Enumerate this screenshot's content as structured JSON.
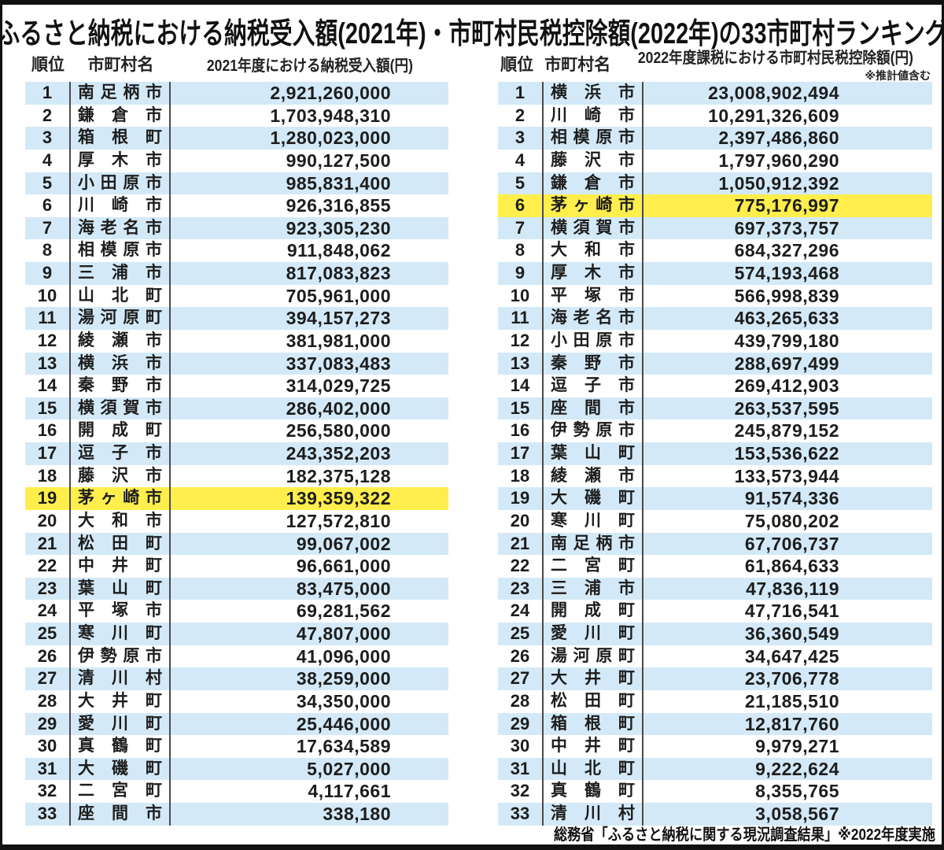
{
  "title": "ふるさと納税における納税受入額(2021年)・市町村民税控除額(2022年)の33市町村ランキング",
  "footer": "総務省「ふるさと納税に関する現況調査結果」※2022年度実施",
  "colors": {
    "stripe_blue": "#d3e9f7",
    "highlight_yellow": "#ffee4c",
    "divider_gray": "#4a4a4a",
    "frame_black": "#111111",
    "text_black": "#1d1d1d"
  },
  "chart_data": [
    {
      "type": "table",
      "title": "2021年度における納税受入額(円)",
      "headers": {
        "rank": "順位",
        "name": "市町村名",
        "amount": "2021年度における納税受入額(円)",
        "note": ""
      },
      "highlight_rank": 19,
      "highlight_name": "茅ヶ崎市",
      "columns": [
        "順位",
        "市町村名",
        "納税受入額(円)"
      ],
      "rows": [
        [
          1,
          "南足柄市",
          "2,921,260,000"
        ],
        [
          2,
          "鎌倉市",
          "1,703,948,310"
        ],
        [
          3,
          "箱根町",
          "1,280,023,000"
        ],
        [
          4,
          "厚木市",
          "990,127,500"
        ],
        [
          5,
          "小田原市",
          "985,831,400"
        ],
        [
          6,
          "川崎市",
          "926,316,855"
        ],
        [
          7,
          "海老名市",
          "923,305,230"
        ],
        [
          8,
          "相模原市",
          "911,848,062"
        ],
        [
          9,
          "三浦市",
          "817,083,823"
        ],
        [
          10,
          "山北町",
          "705,961,000"
        ],
        [
          11,
          "湯河原町",
          "394,157,273"
        ],
        [
          12,
          "綾瀬市",
          "381,981,000"
        ],
        [
          13,
          "横浜市",
          "337,083,483"
        ],
        [
          14,
          "秦野市",
          "314,029,725"
        ],
        [
          15,
          "横須賀市",
          "286,402,000"
        ],
        [
          16,
          "開成町",
          "256,580,000"
        ],
        [
          17,
          "逗子市",
          "243,352,203"
        ],
        [
          18,
          "藤沢市",
          "182,375,128"
        ],
        [
          19,
          "茅ヶ崎市",
          "139,359,322"
        ],
        [
          20,
          "大和市",
          "127,572,810"
        ],
        [
          21,
          "松田町",
          "99,067,002"
        ],
        [
          22,
          "中井町",
          "96,661,000"
        ],
        [
          23,
          "葉山町",
          "83,475,000"
        ],
        [
          24,
          "平塚市",
          "69,281,562"
        ],
        [
          25,
          "寒川町",
          "47,807,000"
        ],
        [
          26,
          "伊勢原市",
          "41,096,000"
        ],
        [
          27,
          "清川村",
          "38,259,000"
        ],
        [
          28,
          "大井町",
          "34,350,000"
        ],
        [
          29,
          "愛川町",
          "25,446,000"
        ],
        [
          30,
          "真鶴町",
          "17,634,589"
        ],
        [
          31,
          "大磯町",
          "5,027,000"
        ],
        [
          32,
          "二宮町",
          "4,117,661"
        ],
        [
          33,
          "座間市",
          "338,180"
        ]
      ]
    },
    {
      "type": "table",
      "title": "2022年度課税における市町村民税控除額(円)",
      "headers": {
        "rank": "順位",
        "name": "市町村名",
        "amount": "2022年度課税における市町村民税控除額(円)",
        "note": "※推計値含む"
      },
      "highlight_rank": 6,
      "highlight_name": "茅ヶ崎市",
      "columns": [
        "順位",
        "市町村名",
        "市町村民税控除額(円)"
      ],
      "rows": [
        [
          1,
          "横浜市",
          "23,008,902,494"
        ],
        [
          2,
          "川崎市",
          "10,291,326,609"
        ],
        [
          3,
          "相模原市",
          "2,397,486,860"
        ],
        [
          4,
          "藤沢市",
          "1,797,960,290"
        ],
        [
          5,
          "鎌倉市",
          "1,050,912,392"
        ],
        [
          6,
          "茅ヶ崎市",
          "775,176,997"
        ],
        [
          7,
          "横須賀市",
          "697,373,757"
        ],
        [
          8,
          "大和市",
          "684,327,296"
        ],
        [
          9,
          "厚木市",
          "574,193,468"
        ],
        [
          10,
          "平塚市",
          "566,998,839"
        ],
        [
          11,
          "海老名市",
          "463,265,633"
        ],
        [
          12,
          "小田原市",
          "439,799,180"
        ],
        [
          13,
          "秦野市",
          "288,697,499"
        ],
        [
          14,
          "逗子市",
          "269,412,903"
        ],
        [
          15,
          "座間市",
          "263,537,595"
        ],
        [
          16,
          "伊勢原市",
          "245,879,152"
        ],
        [
          17,
          "葉山町",
          "153,536,622"
        ],
        [
          18,
          "綾瀬市",
          "133,573,944"
        ],
        [
          19,
          "大磯町",
          "91,574,336"
        ],
        [
          20,
          "寒川町",
          "75,080,202"
        ],
        [
          21,
          "南足柄市",
          "67,706,737"
        ],
        [
          22,
          "二宮町",
          "61,864,633"
        ],
        [
          23,
          "三浦市",
          "47,836,119"
        ],
        [
          24,
          "開成町",
          "47,716,541"
        ],
        [
          25,
          "愛川町",
          "36,360,549"
        ],
        [
          26,
          "湯河原町",
          "34,647,425"
        ],
        [
          27,
          "大井町",
          "23,706,778"
        ],
        [
          28,
          "松田町",
          "21,185,510"
        ],
        [
          29,
          "箱根町",
          "12,817,760"
        ],
        [
          30,
          "中井町",
          "9,979,271"
        ],
        [
          31,
          "山北町",
          "9,222,624"
        ],
        [
          32,
          "真鶴町",
          "8,355,765"
        ],
        [
          33,
          "清川村",
          "3,058,567"
        ]
      ]
    }
  ]
}
